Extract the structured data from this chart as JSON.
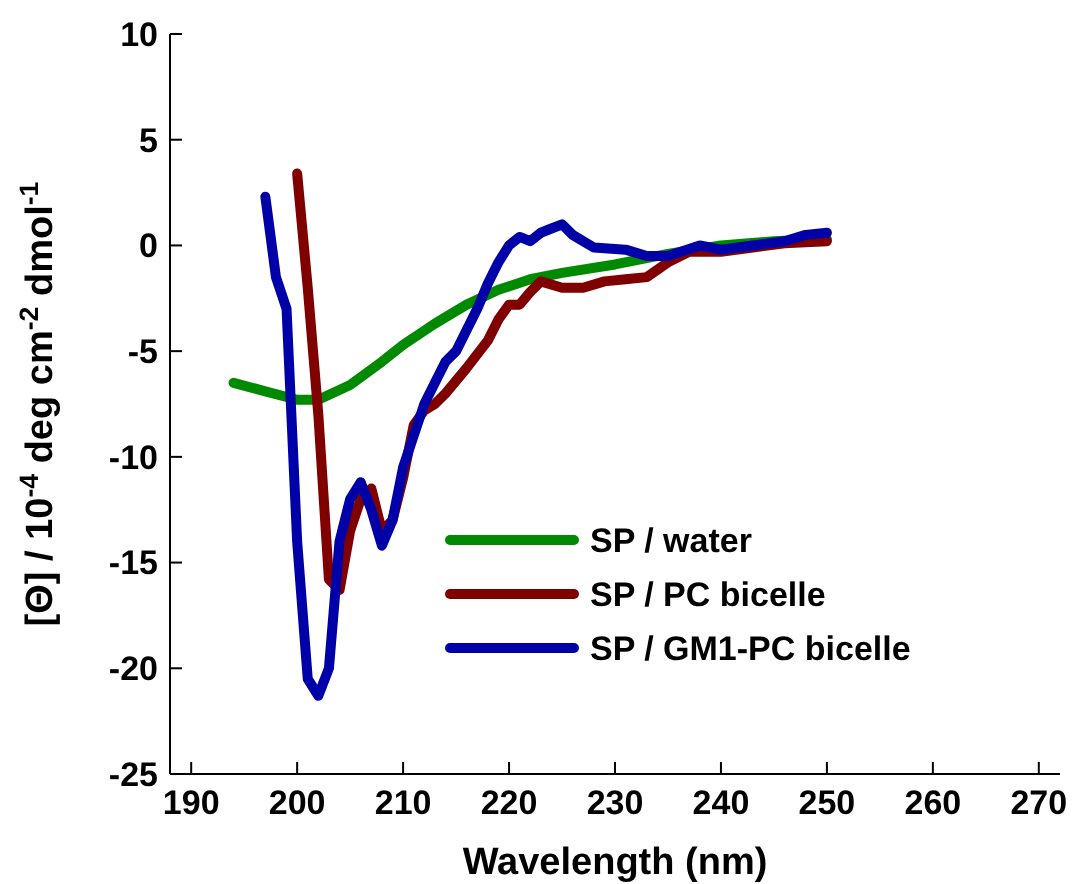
{
  "chart_data": {
    "type": "line",
    "xlabel": "Wavelength (nm)",
    "ylabel": "[Θ] / 10$^{-4}$ deg cm$^{-2}$ dmol$^{-1}$",
    "xlim": [
      188,
      272
    ],
    "xticks": [
      190,
      200,
      210,
      220,
      230,
      240,
      250,
      260,
      270
    ],
    "ylim": [
      -25,
      10
    ],
    "yticks": [
      -25,
      -20,
      -15,
      -10,
      -5,
      0,
      5,
      10
    ],
    "grid": false,
    "legend": "bottom",
    "marker": "none",
    "line_style": "solid",
    "series": [
      {
        "name": "SP / water",
        "color": "#008a00",
        "x": [
          194,
          197,
          200,
          202,
          205,
          208,
          210,
          213,
          216,
          219,
          222,
          225,
          230,
          235,
          240,
          245,
          250
        ],
        "values": [
          -6.5,
          -6.9,
          -7.3,
          -7.3,
          -6.6,
          -5.5,
          -4.7,
          -3.7,
          -2.8,
          -2.1,
          -1.6,
          -1.3,
          -0.9,
          -0.4,
          0,
          0.2,
          0.3
        ]
      },
      {
        "name": "SP / PC bicelle",
        "color": "#800000",
        "x": [
          200,
          201,
          202,
          203,
          204,
          205,
          206,
          207,
          208,
          209,
          210,
          211,
          212,
          213,
          214,
          216,
          218,
          219,
          220,
          221,
          222,
          223,
          225,
          227,
          229,
          231,
          233,
          235,
          237,
          240,
          243,
          246,
          250
        ],
        "values": [
          3.4,
          -2,
          -8,
          -15.8,
          -16.3,
          -13.5,
          -12,
          -11.5,
          -13.5,
          -13,
          -11,
          -8.5,
          -7.8,
          -7.5,
          -7,
          -5.8,
          -4.5,
          -3.5,
          -2.8,
          -2.8,
          -2.2,
          -1.7,
          -2,
          -2,
          -1.7,
          -1.6,
          -1.5,
          -0.8,
          -0.3,
          -0.3,
          -0.1,
          0.1,
          0.2
        ]
      },
      {
        "name": "SP / GM1-PC bicelle",
        "color": "#0000a8",
        "x": [
          197,
          198,
          199,
          200,
          201,
          202,
          203,
          204,
          205,
          206,
          207,
          208,
          209,
          210,
          211,
          212,
          213,
          214,
          215,
          216,
          217,
          218,
          219,
          220,
          221,
          222,
          223,
          224,
          225,
          226,
          228,
          231,
          233,
          235,
          238,
          240,
          243,
          246,
          248,
          250
        ],
        "values": [
          2.3,
          -1.5,
          -3,
          -14,
          -20.5,
          -21.3,
          -20,
          -14,
          -12,
          -11.2,
          -12.5,
          -14.2,
          -13,
          -10.5,
          -9,
          -7.5,
          -6.5,
          -5.5,
          -5,
          -4,
          -3,
          -1.8,
          -0.8,
          0,
          0.4,
          0.2,
          0.6,
          0.8,
          1,
          0.5,
          -0.1,
          -0.2,
          -0.5,
          -0.5,
          0,
          -0.2,
          0,
          0.2,
          0.5,
          0.6
        ]
      }
    ]
  }
}
